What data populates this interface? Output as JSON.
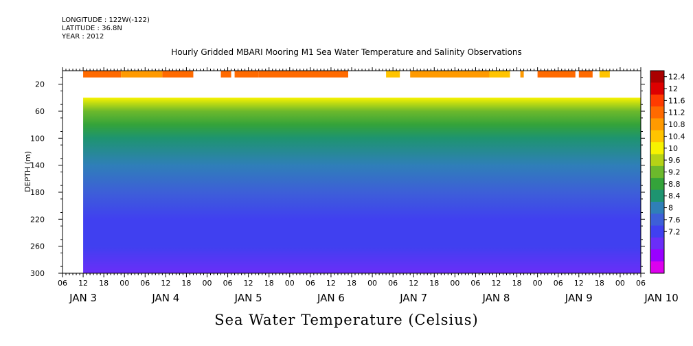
{
  "header": {
    "longitude": "LONGITUDE : 122W(-122)",
    "latitude": "LATITUDE : 36.8N",
    "year": "YEAR : 2012"
  },
  "chart_title": "Hourly Gridded MBARI Mooring M1 Sea Water Temperature and Salinity Observations",
  "footer_label": "Sea Water Temperature (Celsius)",
  "chart_data": {
    "type": "heatmap",
    "title": "Hourly Gridded MBARI Mooring M1 Sea Water Temperature and Salinity Observations",
    "xlabel": "",
    "ylabel": "DEPTH (m)",
    "colorbar_label": "Sea Water Temperature (Celsius)",
    "ylim": [
      300,
      0
    ],
    "y_ticks": [
      20,
      60,
      100,
      140,
      180,
      220,
      260,
      300
    ],
    "x_ticks": [
      "06",
      "12",
      "18",
      "00",
      "06",
      "12",
      "18",
      "00",
      "06",
      "12",
      "18",
      "00",
      "06",
      "12",
      "18",
      "00",
      "06",
      "12",
      "18",
      "00",
      "06",
      "12",
      "18",
      "00",
      "06",
      "12",
      "18",
      "00",
      "06"
    ],
    "x_day_labels": [
      "JAN 3",
      "JAN 4",
      "JAN 5",
      "JAN 6",
      "JAN 7",
      "JAN 8",
      "JAN 9",
      "JAN 10"
    ],
    "x_range_hours": [
      6,
      174
    ],
    "data_start": "JAN 3 12:00",
    "colorbar": {
      "levels": [
        7.2,
        7.6,
        8,
        8.4,
        8.8,
        9.2,
        9.6,
        10,
        10.4,
        10.8,
        11.2,
        11.6,
        12,
        12.4
      ],
      "tick_labels": [
        "12.4",
        "12",
        "11.6",
        "11.2",
        "10.8",
        "10.4",
        "10",
        "9.6",
        "9.2",
        "8.8",
        "8.4",
        "8",
        "7.6",
        "7.2"
      ],
      "colors": [
        "#dd00ee",
        "#9900ff",
        "#6a2ef8",
        "#4040f0",
        "#3d5fd8",
        "#2f7fb8",
        "#1e9470",
        "#34a33a",
        "#6cb92c",
        "#b5d216",
        "#f7f200",
        "#ffc400",
        "#ff9a00",
        "#ff6a00",
        "#ff3b00",
        "#dd0000",
        "#aa0000"
      ]
    },
    "surface_band_depth_m": 10,
    "profile": [
      {
        "depth": 40,
        "temp": 11.0
      },
      {
        "depth": 60,
        "temp": 10.3
      },
      {
        "depth": 80,
        "temp": 9.9
      },
      {
        "depth": 100,
        "temp": 9.4
      },
      {
        "depth": 140,
        "temp": 9.0
      },
      {
        "depth": 180,
        "temp": 8.7
      },
      {
        "depth": 220,
        "temp": 8.3
      },
      {
        "depth": 260,
        "temp": 8.0
      },
      {
        "depth": 300,
        "temp": 7.6
      }
    ],
    "surface_segments": [
      {
        "start": 12,
        "end": 23,
        "temp": 12.1
      },
      {
        "start": 23,
        "end": 35,
        "temp": 11.7
      },
      {
        "start": 35,
        "end": 44,
        "temp": 12.0
      },
      {
        "start": 52,
        "end": 55,
        "temp": 12.3
      },
      {
        "start": 56,
        "end": 63,
        "temp": 12.1
      },
      {
        "start": 63,
        "end": 89,
        "temp": 12.0
      },
      {
        "start": 100,
        "end": 104,
        "temp": 11.5
      },
      {
        "start": 107,
        "end": 130,
        "temp": 11.7
      },
      {
        "start": 130,
        "end": 136,
        "temp": 11.5
      },
      {
        "start": 139,
        "end": 140,
        "temp": 11.6
      },
      {
        "start": 144,
        "end": 155,
        "temp": 12.0
      },
      {
        "start": 156,
        "end": 160,
        "temp": 12.0
      },
      {
        "start": 162,
        "end": 165,
        "temp": 11.4
      }
    ]
  }
}
